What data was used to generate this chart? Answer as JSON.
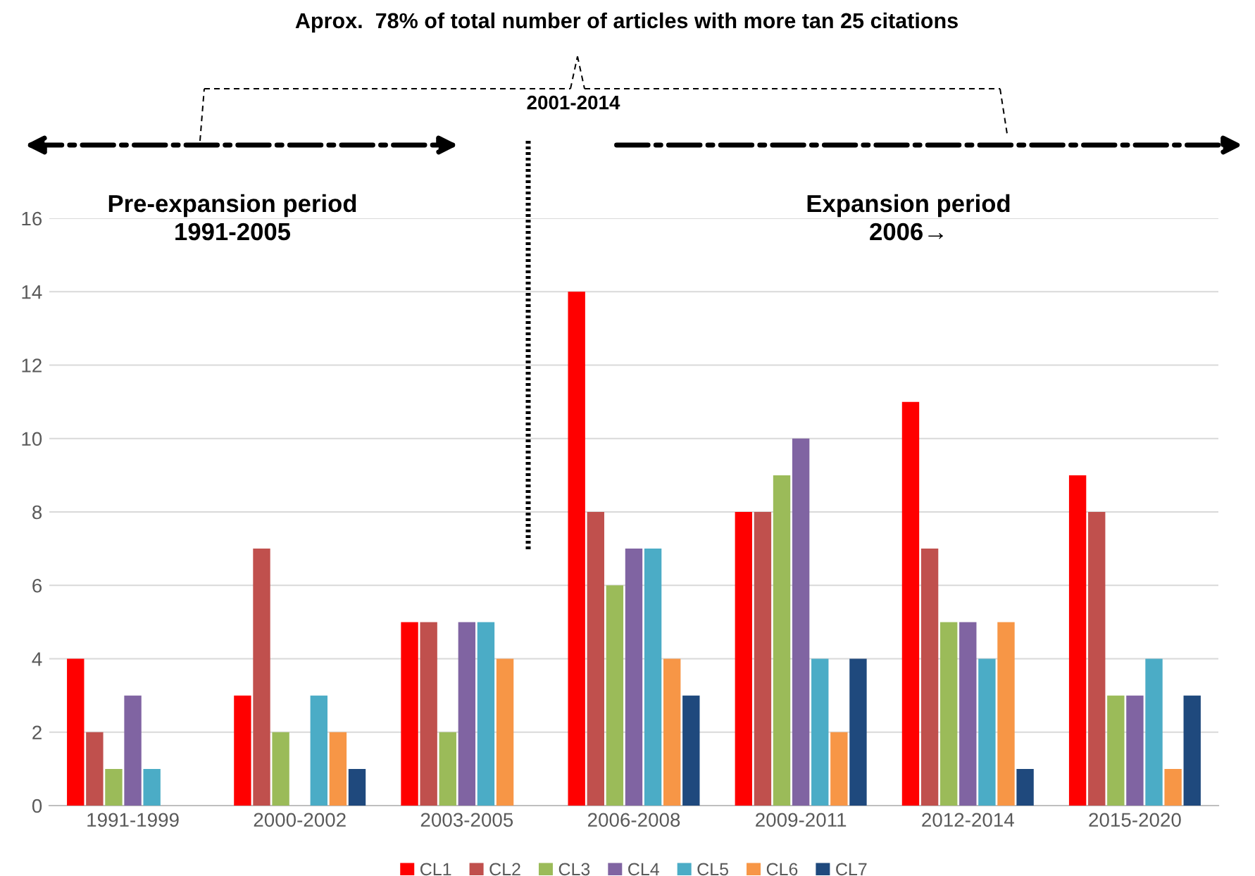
{
  "chart_data": {
    "type": "bar",
    "title": "Aprox.  78% of total number of articles with more tan 25 citations",
    "categories": [
      "1991-1999",
      "2000-2002",
      "2003-2005",
      "2006-2008",
      "2009-2011",
      "2012-2014",
      "2015-2020"
    ],
    "series": [
      {
        "name": "CL1",
        "color": "#ff0000",
        "values": [
          4,
          3,
          5,
          14,
          8,
          11,
          9
        ]
      },
      {
        "name": "CL2",
        "color": "#c0504d",
        "values": [
          2,
          7,
          5,
          8,
          8,
          7,
          8
        ]
      },
      {
        "name": "CL3",
        "color": "#9bbb59",
        "values": [
          1,
          2,
          2,
          6,
          9,
          5,
          3
        ]
      },
      {
        "name": "CL4",
        "color": "#8064a2",
        "values": [
          3,
          0,
          5,
          7,
          10,
          5,
          3
        ]
      },
      {
        "name": "CL5",
        "color": "#4bacc6",
        "values": [
          1,
          3,
          5,
          7,
          4,
          4,
          4
        ]
      },
      {
        "name": "CL6",
        "color": "#f79646",
        "values": [
          0,
          2,
          4,
          4,
          2,
          5,
          1
        ]
      },
      {
        "name": "CL7",
        "color": "#1f497d",
        "values": [
          0,
          1,
          0,
          3,
          4,
          1,
          3
        ]
      }
    ],
    "ylim": [
      0,
      16
    ],
    "yticks": [
      0,
      2,
      4,
      6,
      8,
      10,
      12,
      14,
      16
    ],
    "grid": "y",
    "legend": "bottom",
    "annotations": [
      "2001-2014",
      "Pre-expansion period\n1991-2005",
      "Expansion period\n2006→"
    ]
  }
}
